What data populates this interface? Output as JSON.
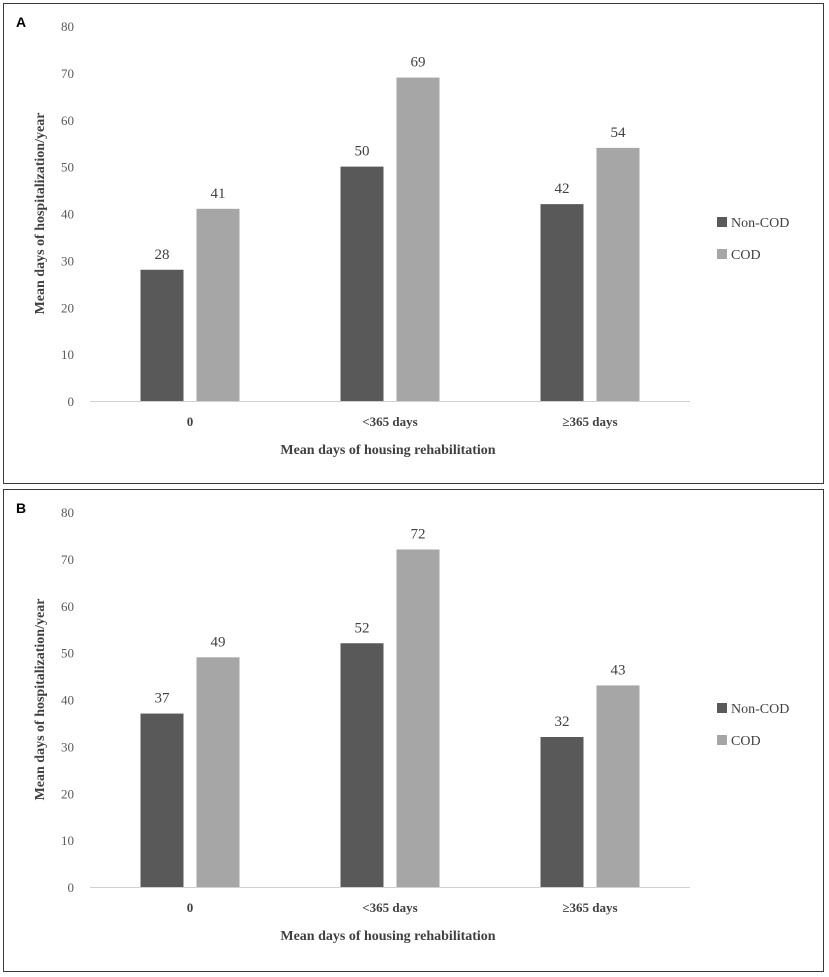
{
  "chart_data": [
    {
      "panel_label": "A",
      "type": "bar",
      "categories": [
        "0",
        "<365 days",
        "≥365 days"
      ],
      "series": [
        {
          "name": "Non-COD",
          "values": [
            28,
            50,
            42
          ],
          "color": "#595959"
        },
        {
          "name": "COD",
          "values": [
            41,
            69,
            54
          ],
          "color": "#a6a6a6"
        }
      ],
      "xlabel": "Mean days of housing rehabilitation",
      "ylabel": "Mean days of hospitalization/year",
      "ylim": [
        0,
        80
      ],
      "yticks": [
        "0",
        "10",
        "20",
        "30",
        "40",
        "50",
        "60",
        "70",
        "80"
      ],
      "legend_position": "right"
    },
    {
      "panel_label": "B",
      "type": "bar",
      "categories": [
        "0",
        "<365 days",
        "≥365 days"
      ],
      "series": [
        {
          "name": "Non-COD",
          "values": [
            37,
            52,
            32
          ],
          "color": "#595959"
        },
        {
          "name": "COD",
          "values": [
            49,
            72,
            43
          ],
          "color": "#a6a6a6"
        }
      ],
      "xlabel": "Mean days of housing rehabilitation",
      "ylabel": "Mean days of hospitalization/year",
      "ylim": [
        0,
        80
      ],
      "yticks": [
        "0",
        "10",
        "20",
        "30",
        "40",
        "50",
        "60",
        "70",
        "80"
      ],
      "legend_position": "right"
    }
  ]
}
